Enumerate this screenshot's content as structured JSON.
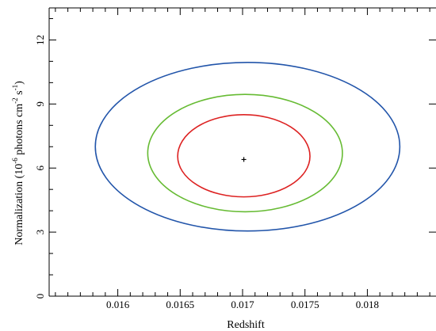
{
  "chart_data": {
    "type": "contour",
    "title": "",
    "xlabel": "Redshift",
    "ylabel_parts": {
      "base": "Normalization (10",
      "exp1": "-6",
      "mid": " photons cm",
      "exp2": "-2",
      "mid2": " s",
      "exp3": "-1",
      "end": ")"
    },
    "xlim": [
      0.01545,
      0.01855
    ],
    "ylim": [
      0,
      13.5
    ],
    "xticks": [
      0.016,
      0.0165,
      0.017,
      0.0175,
      0.018
    ],
    "xtick_labels": [
      "0.016",
      "0.0165",
      "0.017",
      "0.0175",
      "0.018"
    ],
    "x_minor_step": 0.0001,
    "yticks": [
      0,
      3,
      6,
      9,
      12
    ],
    "ytick_labels": [
      "0",
      "3",
      "6",
      "9",
      "12"
    ],
    "y_minor_step": 1,
    "best_fit": {
      "x": 0.01701,
      "y": 6.4
    },
    "series": [
      {
        "color": "#2255aa",
        "center": [
          0.01704,
          7.0
        ],
        "x_half_width": 0.00122,
        "y_top": 10.95,
        "y_bottom": 3.05
      },
      {
        "color": "#66bb33",
        "center": [
          0.01702,
          6.7
        ],
        "x_half_width": 0.00078,
        "y_top": 9.45,
        "y_bottom": 3.95
      },
      {
        "color": "#dd2222",
        "center": [
          0.01701,
          6.55
        ],
        "x_half_width": 0.00053,
        "y_top": 8.5,
        "y_bottom": 4.65
      }
    ]
  }
}
